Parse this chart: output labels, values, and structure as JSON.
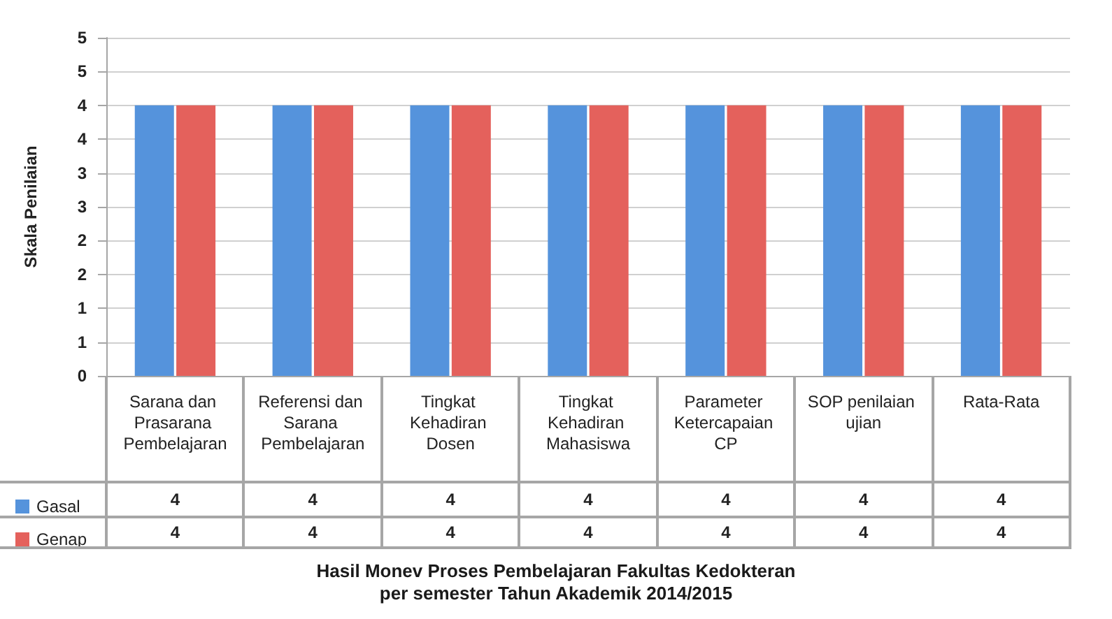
{
  "chart_data": {
    "type": "bar",
    "title": "Hasil Monev Proses Pembelajaran Fakultas Kedokteran",
    "subtitle": "per semester Tahun Akademik 2014/2015",
    "ylabel": "Skala Penilaian",
    "categories": [
      "Sarana dan Prasarana Pembelajaran",
      "Referensi dan Sarana Pembelajaran",
      "Tingkat Kehadiran Dosen",
      "Tingkat Kehadiran Mahasiswa",
      "Parameter Ketercapaian CP",
      "SOP penilaian ujian",
      "Rata-Rata"
    ],
    "series": [
      {
        "name": "Gasal",
        "color": "#5593dc",
        "values": [
          4,
          4,
          4,
          4,
          4,
          4,
          4
        ]
      },
      {
        "name": "Genap",
        "color": "#e4615c",
        "values": [
          4,
          4,
          4,
          4,
          4,
          4,
          4
        ]
      }
    ],
    "ylim": [
      0,
      5
    ],
    "yticks": [
      0,
      {
        "value": 0.5,
        "label": "1"
      },
      1,
      {
        "value": 1.5,
        "label": "2"
      },
      2,
      {
        "value": 2.5,
        "label": "3"
      },
      3,
      {
        "value": 3.5,
        "label": "4"
      },
      4,
      {
        "value": 4.5,
        "label": "5"
      },
      5
    ],
    "grid": "y",
    "legend": "bottom left",
    "data_labels": true
  }
}
